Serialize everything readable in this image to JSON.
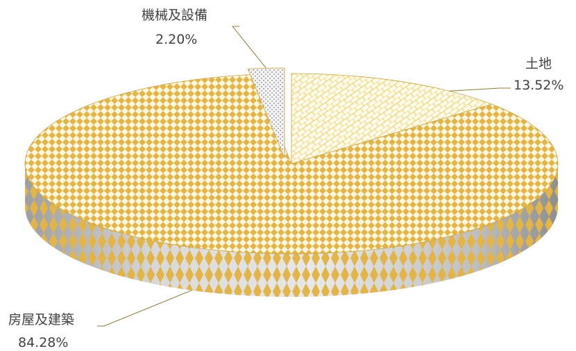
{
  "chart_data": {
    "type": "pie",
    "style": "3d-exploded",
    "title": "",
    "slices": [
      {
        "label": "土地",
        "value": 13.52,
        "value_text": "13.52%",
        "pattern": "diagonal-brick",
        "color": "#F3D47A"
      },
      {
        "label": "房屋及建築",
        "value": 84.28,
        "value_text": "84.28%",
        "pattern": "diamond-check",
        "color": "#E2B54A"
      },
      {
        "label": "機械及設備",
        "value": 2.2,
        "value_text": "2.20%",
        "pattern": "dotted",
        "color": "#9A9A9A"
      }
    ],
    "legend": "none",
    "data_labels": "outside-with-leader-lines"
  },
  "colors": {
    "background": "#FFFFFF",
    "label_text": "#404040",
    "leader_line": "#8C7A3A",
    "pie_gold": "#E2B54A",
    "side_gray": "#C8C8C8"
  }
}
